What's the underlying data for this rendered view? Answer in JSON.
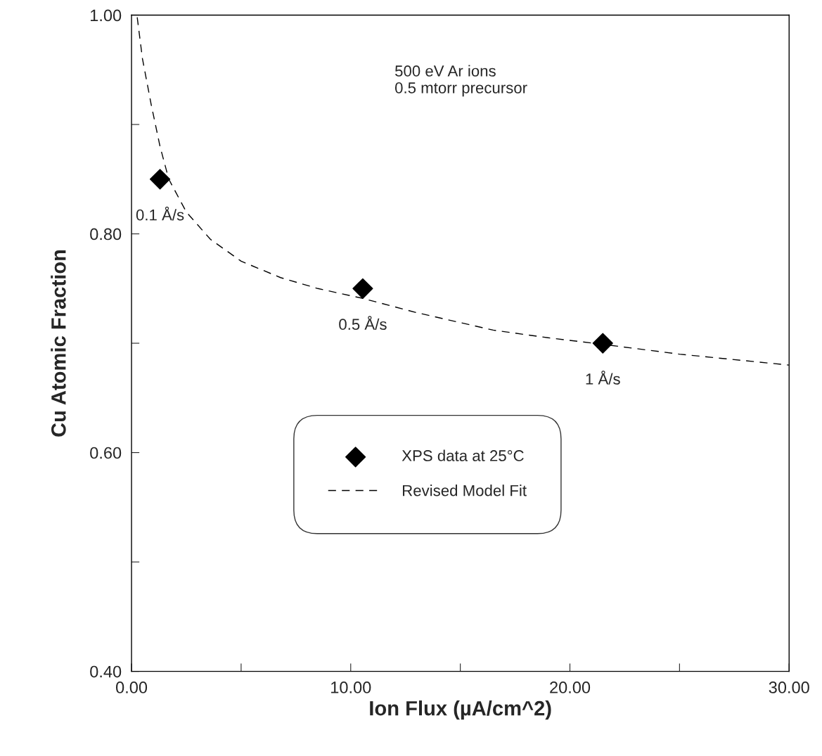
{
  "chart_data": {
    "type": "scatter",
    "xlabel": "Ion Flux (µA/cm^2)",
    "ylabel": "Cu Atomic Fraction",
    "xlim": [
      0,
      30
    ],
    "ylim": [
      0.4,
      1.0
    ],
    "xticks": [
      {
        "value": 0,
        "label": "0.00"
      },
      {
        "value": 5,
        "label": null
      },
      {
        "value": 10,
        "label": "10.00"
      },
      {
        "value": 15,
        "label": null
      },
      {
        "value": 20,
        "label": "20.00"
      },
      {
        "value": 25,
        "label": null
      },
      {
        "value": 30,
        "label": "30.00"
      }
    ],
    "yticks": [
      {
        "value": 0.4,
        "label": "0.40"
      },
      {
        "value": 0.5,
        "label": null
      },
      {
        "value": 0.6,
        "label": "0.60"
      },
      {
        "value": 0.7,
        "label": null
      },
      {
        "value": 0.8,
        "label": "0.80"
      },
      {
        "value": 0.9,
        "label": null
      },
      {
        "value": 1.0,
        "label": "1.00"
      }
    ],
    "legend": "center",
    "series": [
      {
        "name": "XPS data at 25°C",
        "marker": "diamond",
        "color": "#000000",
        "x": [
          1.3,
          10.55,
          21.5
        ],
        "values": [
          0.85,
          0.75,
          0.7
        ]
      },
      {
        "name": "Revised Model Fit",
        "type": "line",
        "line_style": "dashed",
        "color": "#000000",
        "x": [
          0.26,
          0.5,
          0.9,
          1.3,
          1.7,
          2.5,
          3.6,
          5,
          6.8,
          8.5,
          10.55,
          13,
          16.5,
          19,
          21.5,
          25,
          30
        ],
        "values": [
          0.998,
          0.96,
          0.918,
          0.88,
          0.85,
          0.82,
          0.795,
          0.775,
          0.76,
          0.75,
          0.741,
          0.728,
          0.712,
          0.705,
          0.699,
          0.69,
          0.68
        ]
      }
    ],
    "annotations": [
      "500 eV Ar ions\n0.5 mtorr precursor",
      {
        "text": "0.1 Å/s",
        "x": 1.3,
        "y": 0.85
      },
      {
        "text": "0.5 Å/s",
        "x": 10.55,
        "y": 0.75
      },
      {
        "text": "1 Å/s",
        "x": 21.5,
        "y": 0.7
      }
    ]
  }
}
